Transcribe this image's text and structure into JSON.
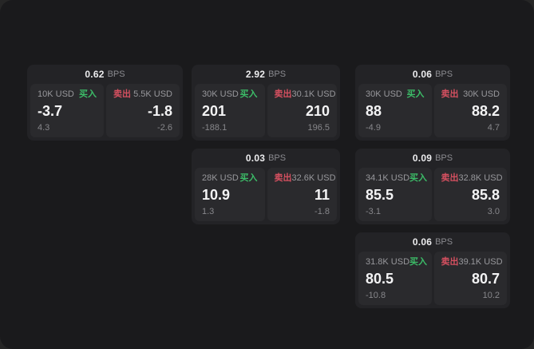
{
  "labels": {
    "bps_unit": "BPS",
    "buy_tag": "买入",
    "sell_tag": "卖出"
  },
  "colors": {
    "outer_background": "#262626",
    "window_background": "#1a1a1c",
    "card_background": "#232326",
    "panel_background": "#2a2a2d",
    "buy_green": "#3cbd68",
    "sell_red": "#d55060",
    "value_white": "#f4f4f5",
    "muted_gray": "#98989c"
  },
  "cards": [
    {
      "col": 0,
      "row": 0,
      "bps": "0.62",
      "buy": {
        "amount": "10K USD",
        "value": "-3.7",
        "delta": "4.3"
      },
      "sell": {
        "amount": "5.5K USD",
        "value": "-1.8",
        "delta": "-2.6"
      }
    },
    {
      "col": 1,
      "row": 0,
      "bps": "2.92",
      "buy": {
        "amount": "30K USD",
        "value": "201",
        "delta": "-188.1"
      },
      "sell": {
        "amount": "30.1K USD",
        "value": "210",
        "delta": "196.5"
      }
    },
    {
      "col": 1,
      "row": 1,
      "bps": "0.03",
      "buy": {
        "amount": "28K USD",
        "value": "10.9",
        "delta": "1.3"
      },
      "sell": {
        "amount": "32.6K USD",
        "value": "11",
        "delta": "-1.8"
      }
    },
    {
      "col": 2,
      "row": 0,
      "bps": "0.06",
      "buy": {
        "amount": "30K USD",
        "value": "88",
        "delta": "-4.9"
      },
      "sell": {
        "amount": "30K USD",
        "value": "88.2",
        "delta": "4.7"
      }
    },
    {
      "col": 2,
      "row": 1,
      "bps": "0.09",
      "buy": {
        "amount": "34.1K USD",
        "value": "85.5",
        "delta": "-3.1"
      },
      "sell": {
        "amount": "32.8K USD",
        "value": "85.8",
        "delta": "3.0"
      }
    },
    {
      "col": 2,
      "row": 2,
      "bps": "0.06",
      "buy": {
        "amount": "31.8K USD",
        "value": "80.5",
        "delta": "-10.8"
      },
      "sell": {
        "amount": "39.1K USD",
        "value": "80.7",
        "delta": "10.2"
      }
    }
  ]
}
